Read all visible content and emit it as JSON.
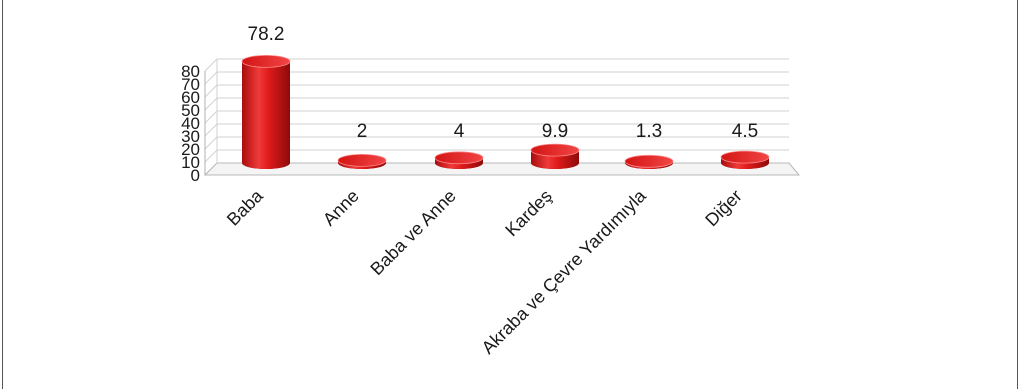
{
  "chart_data": {
    "type": "bar",
    "style": "3d-cylinder",
    "categories": [
      "Baba",
      "Anne",
      "Baba ve Anne",
      "Kardeş",
      "Akraba ve Çevre Yardımıyla",
      "Diğer"
    ],
    "values": [
      78.2,
      2,
      4,
      9.9,
      1.3,
      4.5
    ],
    "data_labels": [
      "78.2",
      "2",
      "4",
      "9.9",
      "1.3",
      "4.5"
    ],
    "yticks": [
      "0",
      "10",
      "20",
      "30",
      "40",
      "50",
      "60",
      "70",
      "80"
    ],
    "ylim": [
      0,
      80
    ],
    "grid": true,
    "legend": "none",
    "bar_color": "#e11b1b",
    "grid_color": "#d0d0d0"
  }
}
